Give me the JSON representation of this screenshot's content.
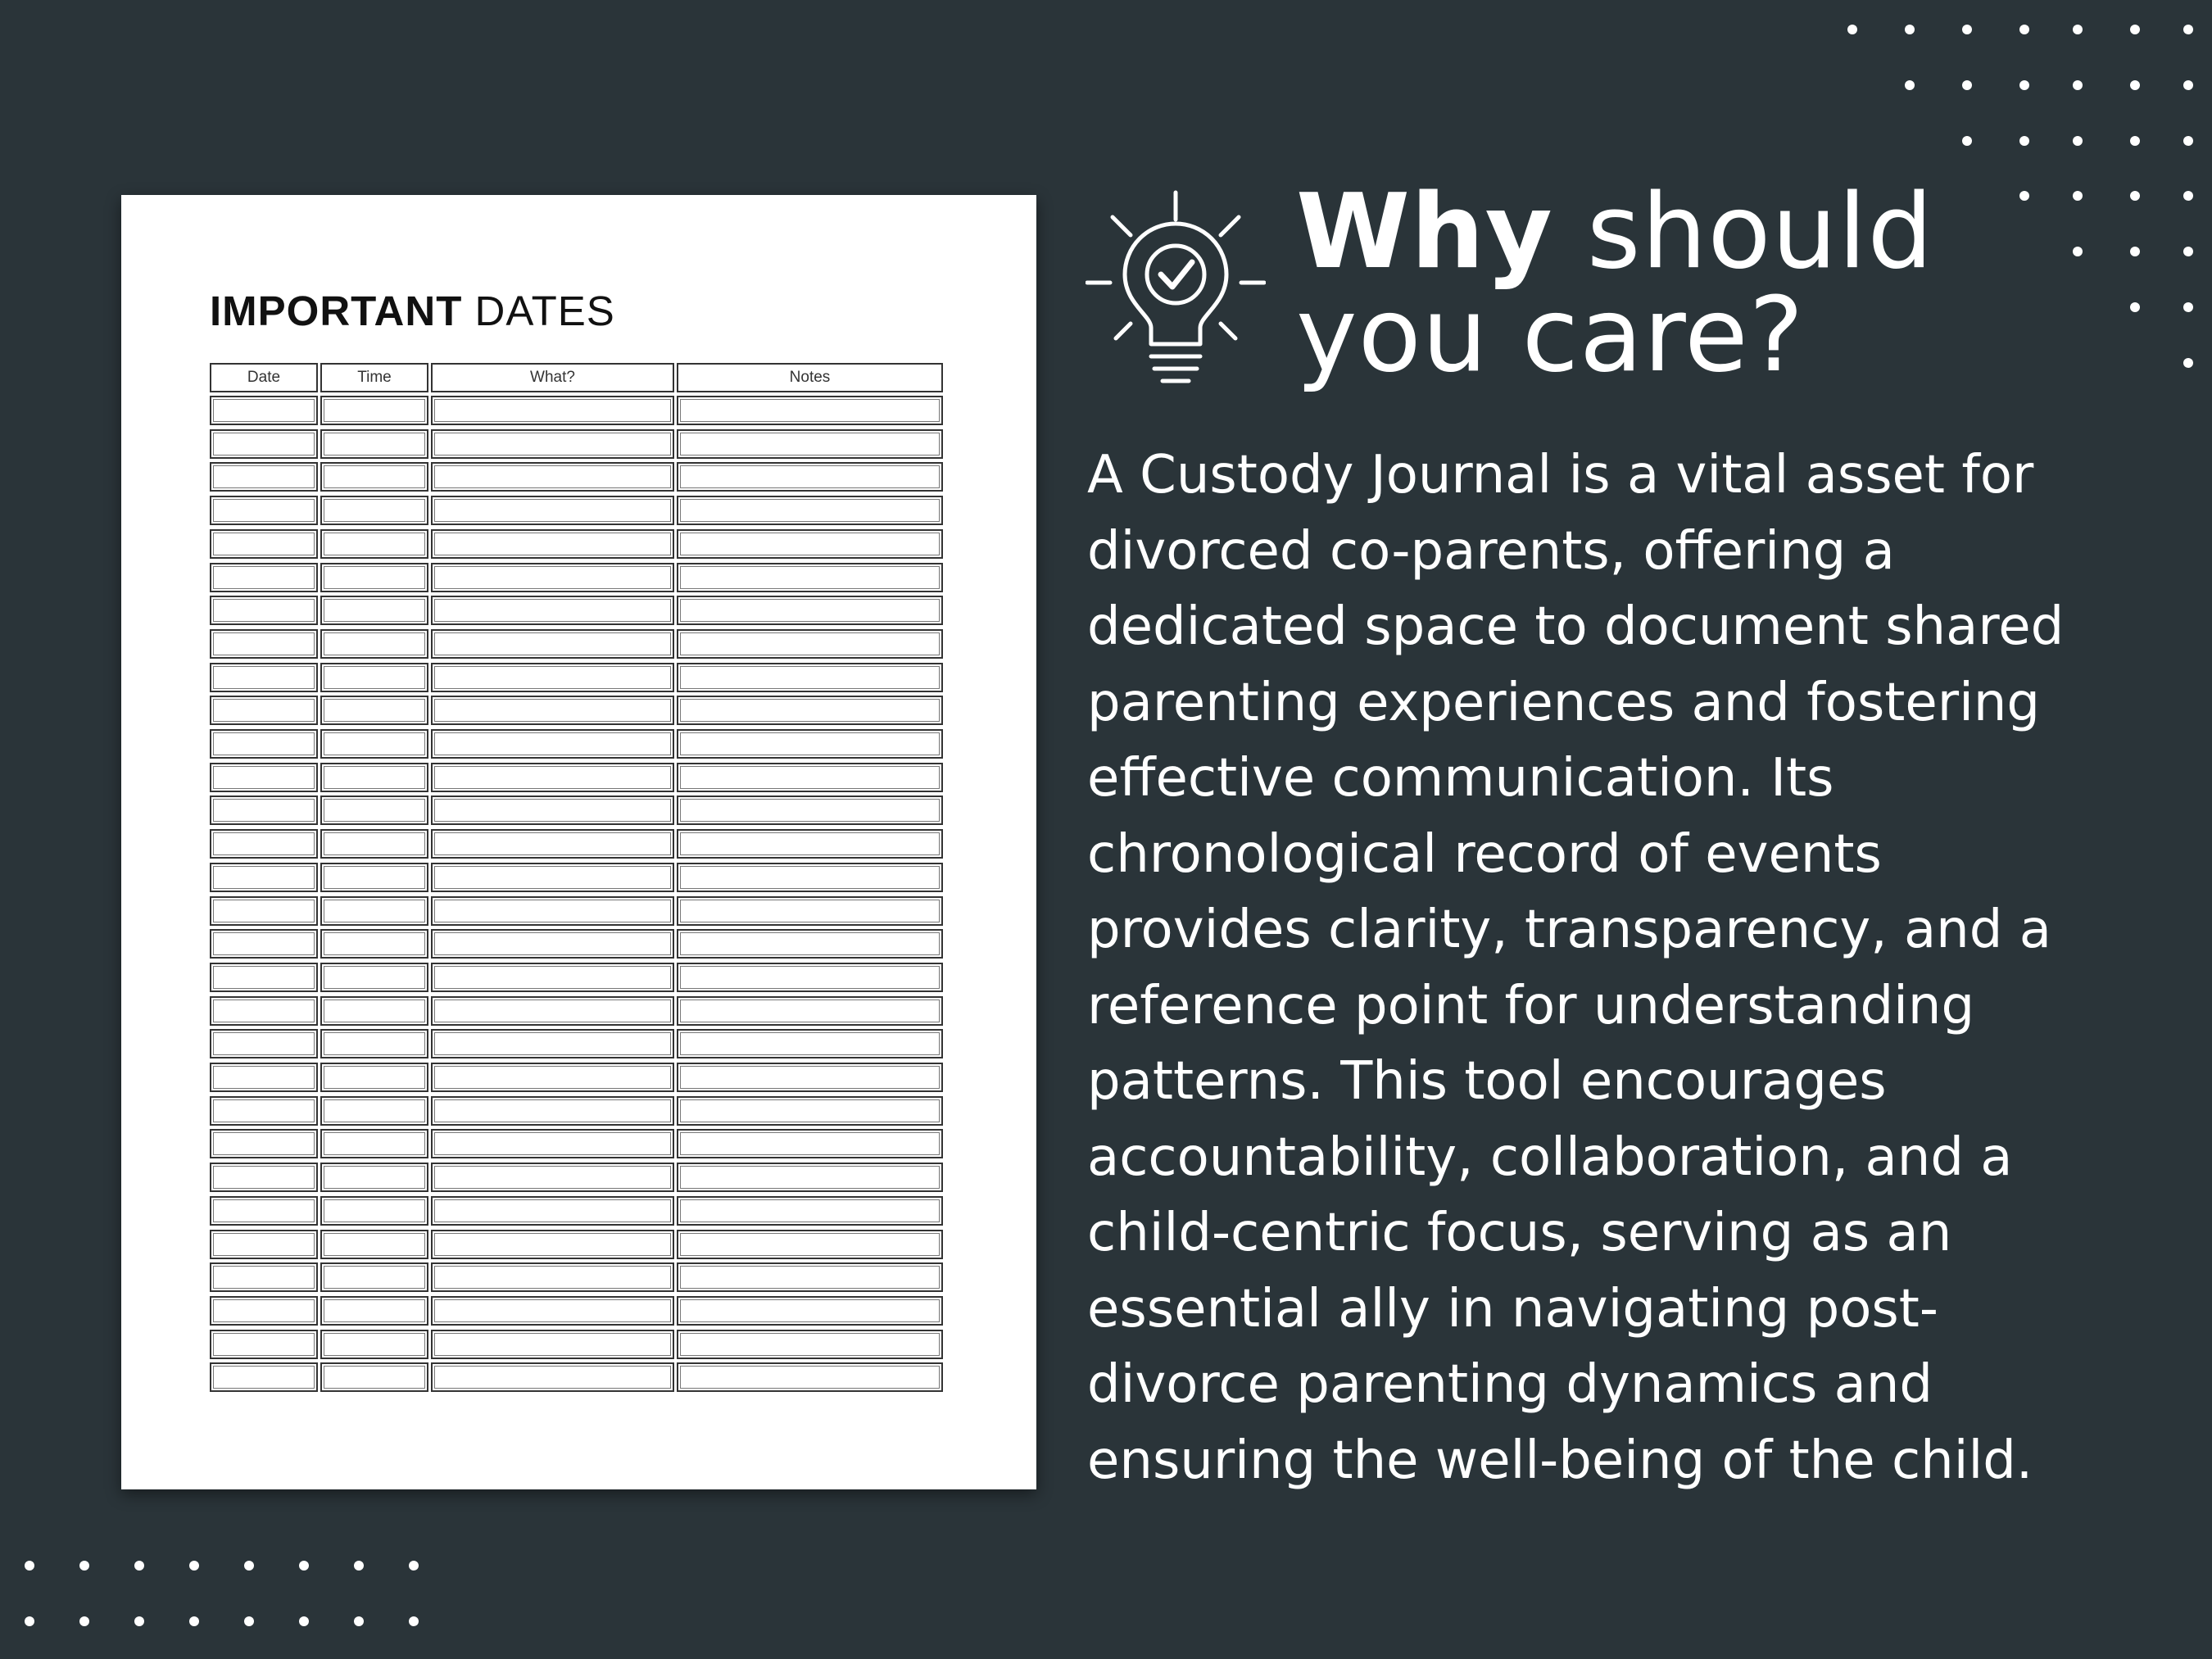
{
  "colors": {
    "background": "#2a3439",
    "text": "#ffffff",
    "page": "#ffffff"
  },
  "icon": "lightbulb-checkmark-icon",
  "planner_page": {
    "title_bold": "IMPORTANT",
    "title_rest": "DATES",
    "columns": [
      "Date",
      "Time",
      "What?",
      "Notes"
    ],
    "empty_rows": 30
  },
  "headline": {
    "bold": "Why",
    "rest_line1": "should",
    "line2": "you care?"
  },
  "body_lines": [
    "A Custody Journal is a vital asset for",
    "divorced co-parents, offering a",
    "dedicated space to document shared",
    "parenting experiences and fostering",
    "effective communication. Its",
    "chronological record of events",
    "provides clarity, transparency, and a",
    "reference point for understanding",
    "patterns. This tool encourages",
    "accountability, collaboration, and a",
    "child-centric focus, serving as an",
    "essential ally in navigating post-",
    "divorce parenting dynamics and",
    "ensuring the well-being of the child."
  ]
}
